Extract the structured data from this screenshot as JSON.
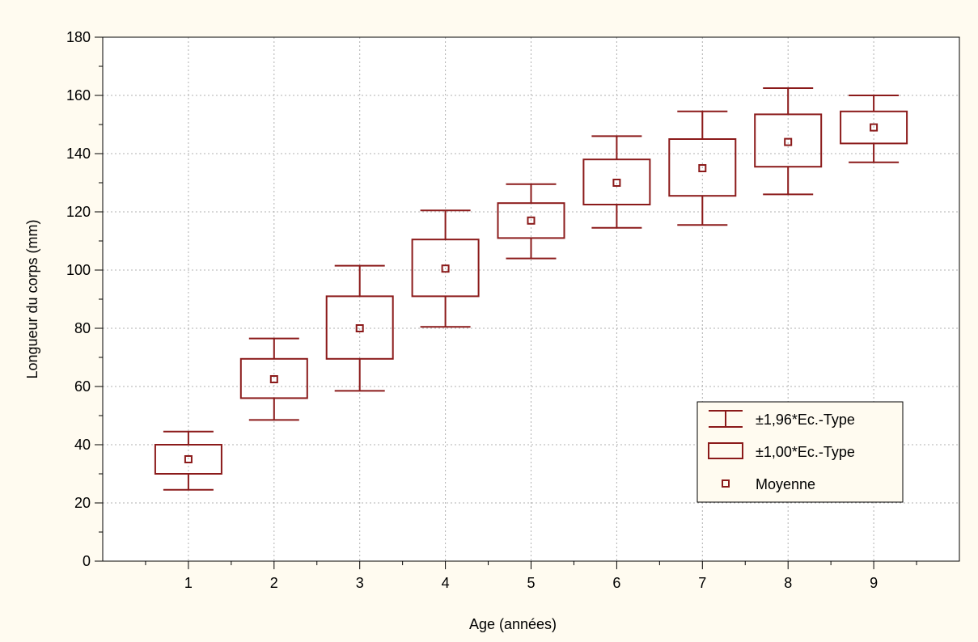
{
  "chart_data": {
    "type": "box",
    "xlabel": "Age (années)",
    "ylabel": "Longueur du corps (mm)",
    "categories": [
      "1",
      "2",
      "3",
      "4",
      "5",
      "6",
      "7",
      "8",
      "9"
    ],
    "x": [
      1,
      2,
      3,
      4,
      5,
      6,
      7,
      8,
      9
    ],
    "xlim": [
      0,
      10
    ],
    "ylim": [
      0,
      180
    ],
    "yticks": [
      0,
      20,
      40,
      60,
      80,
      100,
      120,
      140,
      160,
      180
    ],
    "grid": true,
    "legend_position": "bottom-right",
    "series": [
      {
        "name": "Moyenne",
        "values": [
          35,
          62.5,
          80,
          100.5,
          117,
          130,
          135,
          144,
          149
        ]
      },
      {
        "name": "±1,00*Ec.-Type",
        "low": [
          30,
          56,
          69.5,
          91,
          111,
          122.5,
          125.5,
          135.5,
          143.5
        ],
        "high": [
          40,
          69.5,
          91,
          110.5,
          123,
          138,
          145,
          153.5,
          154.5
        ]
      },
      {
        "name": "±1,96*Ec.-Type",
        "low": [
          24.5,
          48.5,
          58.5,
          80.5,
          104,
          114.5,
          115.5,
          126,
          137
        ],
        "high": [
          44.5,
          76.5,
          101.5,
          120.5,
          129.5,
          146,
          154.5,
          162.5,
          160
        ]
      }
    ],
    "legend": [
      {
        "key": "whisker",
        "label": "±1,96*Ec.-Type"
      },
      {
        "key": "box",
        "label": "±1,00*Ec.-Type"
      },
      {
        "key": "mean",
        "label": "Moyenne"
      }
    ],
    "colors": {
      "mark": "#8b1a1a",
      "background": "#fffbf0",
      "plot_background": "#ffffff",
      "grid": "#b0b0b0",
      "axis": "#000000"
    }
  }
}
